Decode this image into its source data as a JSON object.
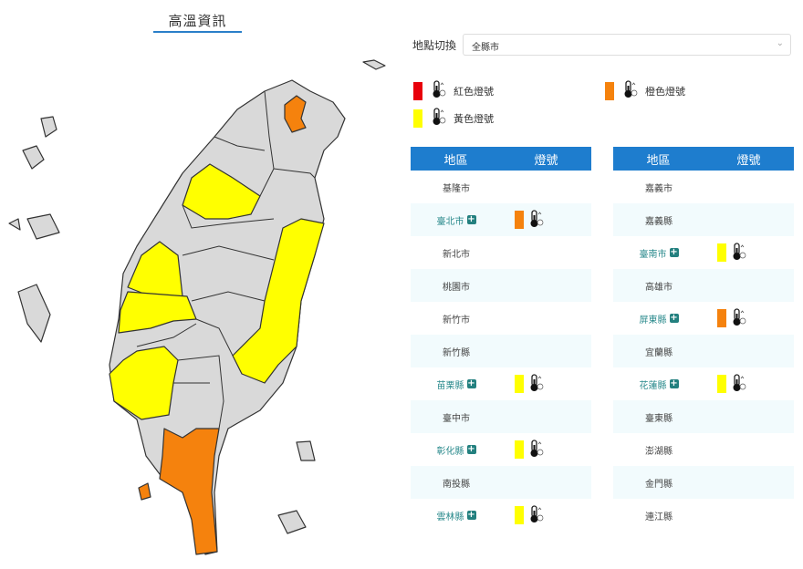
{
  "title": "高溫資訊",
  "location_switch": {
    "label": "地點切換",
    "value": "全縣市"
  },
  "colors": {
    "red": "#e8000b",
    "orange": "#f5820d",
    "yellow": "#ffff00",
    "gray": "#d9d9d9",
    "header": "#1e7dce"
  },
  "legend": [
    {
      "level": "red",
      "label": "紅色燈號",
      "icon": "thermometer-3-icon"
    },
    {
      "level": "orange",
      "label": "橙色燈號",
      "icon": "thermometer-2-icon"
    },
    {
      "level": "yellow",
      "label": "黃色燈號",
      "icon": "thermometer-1-icon"
    }
  ],
  "table_headers": {
    "region": "地區",
    "signal": "燈號"
  },
  "left_table": [
    {
      "name": "基隆市",
      "level": null
    },
    {
      "name": "臺北市",
      "level": "orange"
    },
    {
      "name": "新北市",
      "level": null
    },
    {
      "name": "桃園市",
      "level": null
    },
    {
      "name": "新竹市",
      "level": null
    },
    {
      "name": "新竹縣",
      "level": null
    },
    {
      "name": "苗栗縣",
      "level": "yellow"
    },
    {
      "name": "臺中市",
      "level": null
    },
    {
      "name": "彰化縣",
      "level": "yellow"
    },
    {
      "name": "南投縣",
      "level": null
    },
    {
      "name": "雲林縣",
      "level": "yellow"
    }
  ],
  "right_table": [
    {
      "name": "嘉義市",
      "level": null
    },
    {
      "name": "嘉義縣",
      "level": null
    },
    {
      "name": "臺南市",
      "level": "yellow"
    },
    {
      "name": "高雄市",
      "level": null
    },
    {
      "name": "屏東縣",
      "level": "orange"
    },
    {
      "name": "宜蘭縣",
      "level": null
    },
    {
      "name": "花蓮縣",
      "level": "yellow"
    },
    {
      "name": "臺東縣",
      "level": null
    },
    {
      "name": "澎湖縣",
      "level": null
    },
    {
      "name": "金門縣",
      "level": null
    },
    {
      "name": "連江縣",
      "level": null
    }
  ]
}
